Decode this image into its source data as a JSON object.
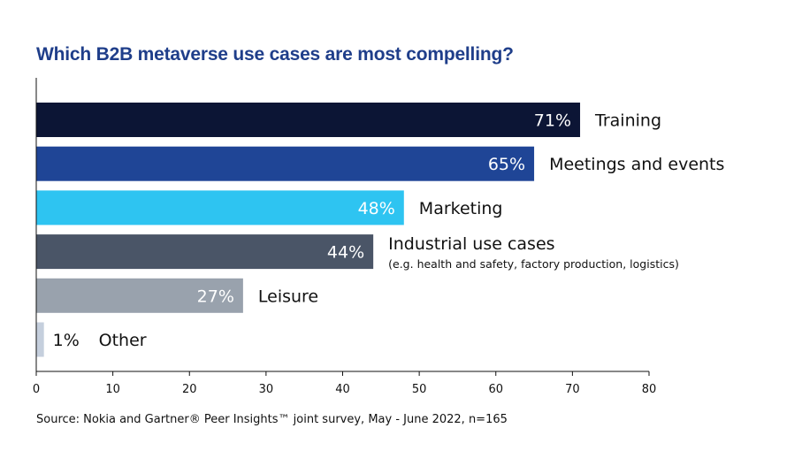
{
  "chart_data": {
    "type": "bar",
    "orientation": "horizontal",
    "title": "Which B2B metaverse use cases are most compelling?",
    "categories": [
      "Training",
      "Meetings and events",
      "Marketing",
      "Industrial use cases",
      "Leisure",
      "Other"
    ],
    "category_notes": [
      "",
      "",
      "",
      "(e.g. health and safety, factory production, logistics)",
      "",
      ""
    ],
    "values": [
      71,
      65,
      48,
      44,
      27,
      1
    ],
    "value_labels": [
      "71%",
      "65%",
      "48%",
      "44%",
      "27%",
      "1%"
    ],
    "colors": [
      "#0c1535",
      "#1f4596",
      "#2ec4f1",
      "#4a5567",
      "#99a2ad",
      "#c5cfdd"
    ],
    "xlim": [
      0,
      80
    ],
    "xticks": [
      0,
      10,
      20,
      30,
      40,
      50,
      60,
      70,
      80
    ],
    "xlabel": "",
    "ylabel": "",
    "grid": false
  },
  "source": "Source: Nokia and Gartner® Peer Insights™ joint survey, May - June 2022, n=165"
}
